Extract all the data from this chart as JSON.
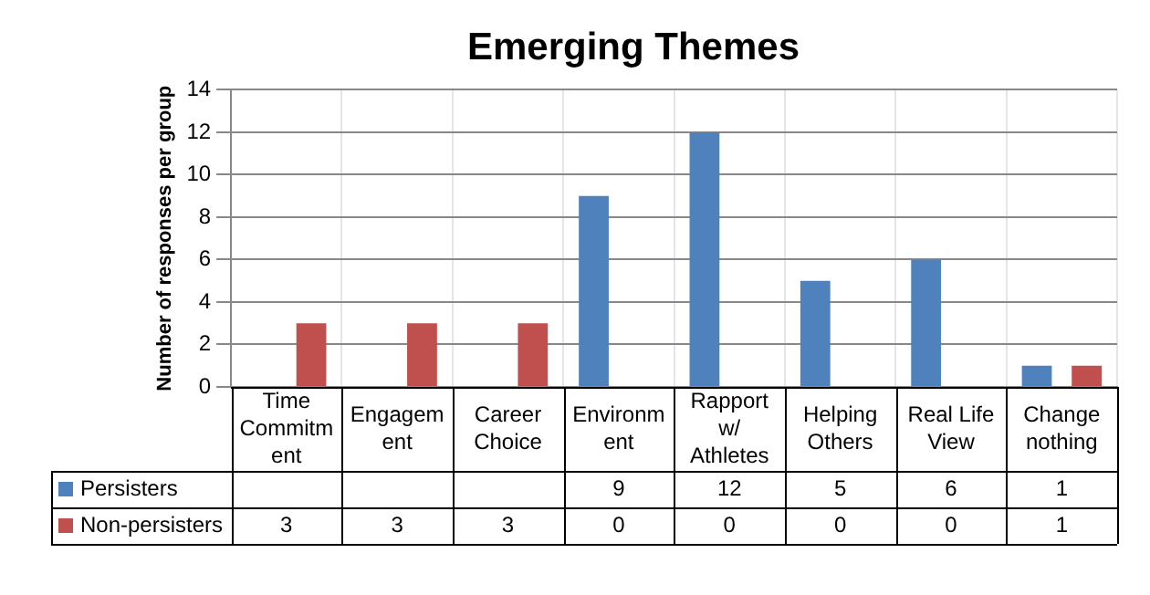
{
  "chart_data": {
    "type": "bar",
    "title": "Emerging Themes",
    "ylabel": "Number of responses per group",
    "categories": [
      "Time Commitment",
      "Engagement",
      "Career Choice",
      "Environment",
      "Rapport w/ Athletes",
      "Helping Others",
      "Real Life View",
      "Change nothing"
    ],
    "series": [
      {
        "name": "Persisters",
        "color": "#4f81bd",
        "values": [
          null,
          null,
          null,
          9,
          12,
          5,
          6,
          1
        ]
      },
      {
        "name": "Non-persisters",
        "color": "#c0504d",
        "values": [
          3,
          3,
          3,
          0,
          0,
          0,
          0,
          1
        ]
      }
    ],
    "ylim": [
      0,
      14
    ],
    "yticks": [
      0,
      2,
      4,
      6,
      8,
      10,
      12,
      14
    ],
    "grid": true,
    "legend": "bottom",
    "data_labels": true
  }
}
